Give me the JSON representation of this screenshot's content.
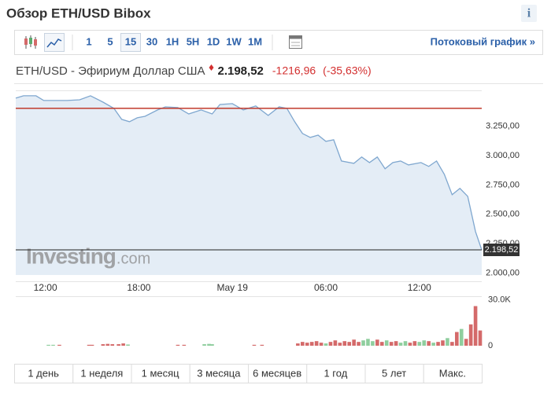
{
  "header": {
    "title": "Обзор ETH/USD Bibox",
    "info_icon": "i"
  },
  "toolbar": {
    "intervals": [
      "1",
      "5",
      "15",
      "30",
      "1H",
      "5H",
      "1D",
      "1W",
      "1M"
    ],
    "selected_interval": 2,
    "stream_link": "Потоковый график »"
  },
  "quote": {
    "name": "ETH/USD - Эфириум Доллар США",
    "price": "2.198,52",
    "change": "-1216,96",
    "change_percent": "(-35,63%)"
  },
  "chart_data": [
    {
      "type": "area",
      "color": "#7fa7cf",
      "fill": "#e4edf6",
      "x": [
        10.1,
        10.6,
        11.4,
        11.9,
        12.6,
        13.4,
        14.2,
        14.9,
        15.7,
        16.4,
        16.9,
        17.4,
        17.9,
        18.4,
        19.2,
        19.7,
        20.5,
        21.2,
        22.0,
        22.7,
        23.2,
        24.0,
        24.7,
        25.5,
        26.3,
        27.0,
        27.5,
        28.0,
        28.5,
        29.0,
        29.5,
        30.0,
        30.5,
        31.0,
        31.8,
        32.3,
        32.8,
        33.3,
        33.8,
        34.3,
        34.8,
        35.3,
        36.1,
        36.6,
        37.1,
        37.6,
        38.1,
        38.6,
        39.1,
        39.6,
        40.0
      ],
      "values": [
        3487,
        3507,
        3507,
        3467,
        3467,
        3467,
        3473,
        3507,
        3453,
        3400,
        3307,
        3287,
        3320,
        3333,
        3387,
        3413,
        3407,
        3353,
        3387,
        3353,
        3433,
        3440,
        3387,
        3420,
        3340,
        3413,
        3400,
        3287,
        3187,
        3153,
        3173,
        3120,
        3133,
        2953,
        2933,
        2987,
        2940,
        2987,
        2887,
        2940,
        2953,
        2920,
        2940,
        2907,
        2953,
        2840,
        2667,
        2720,
        2653,
        2353,
        2198.52
      ],
      "xlim": [
        10.1,
        40.0
      ],
      "ylim": [
        1985,
        3553
      ],
      "xticks": [
        {
          "value": 12,
          "label": "12:00"
        },
        {
          "value": 18,
          "label": "18:00"
        },
        {
          "value": 24,
          "label": "May 19"
        },
        {
          "value": 30,
          "label": "06:00"
        },
        {
          "value": 36,
          "label": "12:00"
        }
      ],
      "yticks": [
        {
          "value": 2000,
          "label": "2.000,00"
        },
        {
          "value": 2250,
          "label": "2.250,00"
        },
        {
          "value": 2500,
          "label": "2.500,00"
        },
        {
          "value": 2750,
          "label": "2.750,00"
        },
        {
          "value": 3000,
          "label": "3.000,00"
        },
        {
          "value": 3250,
          "label": "3.250,00"
        }
      ],
      "reference_line": {
        "value": 3400,
        "color": "#c0392b"
      },
      "last_price": {
        "value": 2198.52,
        "label": "2.198,52"
      },
      "watermark": [
        "Investing",
        ".com"
      ],
      "grid": false
    },
    {
      "type": "bar",
      "x": [
        12.2,
        12.5,
        12.9,
        14.8,
        15.0,
        15.7,
        16.0,
        16.3,
        16.7,
        17.0,
        17.3,
        20.5,
        20.9,
        22.2,
        22.5,
        22.7,
        25.4,
        25.9,
        28.2,
        28.5,
        28.8,
        29.1,
        29.4,
        29.7,
        30.0,
        30.3,
        30.6,
        30.9,
        31.2,
        31.5,
        31.8,
        32.1,
        32.4,
        32.7,
        33.0,
        33.3,
        33.6,
        33.9,
        34.2,
        34.5,
        34.8,
        35.1,
        35.4,
        35.7,
        36.0,
        36.3,
        36.6,
        36.9,
        37.2,
        37.5,
        37.8,
        38.1,
        38.4,
        38.7,
        39.0,
        39.3,
        39.6,
        39.9
      ],
      "values": [
        600,
        600,
        600,
        600,
        600,
        1000,
        1200,
        1000,
        1000,
        1500,
        800,
        600,
        600,
        1000,
        1200,
        1000,
        600,
        600,
        1500,
        2500,
        2000,
        2500,
        3000,
        2000,
        1500,
        2500,
        3500,
        2000,
        3000,
        2500,
        4000,
        2500,
        3500,
        4500,
        3000,
        4000,
        2500,
        3500,
        2500,
        3000,
        2000,
        3000,
        2000,
        3000,
        2500,
        3500,
        3000,
        2000,
        2500,
        3500,
        5000,
        2500,
        9000,
        11000,
        4500,
        14000,
        26000,
        10000
      ],
      "colors": [
        "#8fce9e",
        "#8fce9e",
        "#d46a6a",
        "#d46a6a",
        "#d46a6a",
        "#d46a6a",
        "#d46a6a",
        "#d46a6a",
        "#d46a6a",
        "#d46a6a",
        "#8fce9e",
        "#d46a6a",
        "#d46a6a",
        "#8fce9e",
        "#8fce9e",
        "#8fce9e",
        "#d46a6a",
        "#d46a6a",
        "#d46a6a",
        "#d46a6a",
        "#d46a6a",
        "#d46a6a",
        "#d46a6a",
        "#d46a6a",
        "#8fce9e",
        "#d46a6a",
        "#d46a6a",
        "#d46a6a",
        "#d46a6a",
        "#d46a6a",
        "#d46a6a",
        "#d46a6a",
        "#8fce9e",
        "#8fce9e",
        "#8fce9e",
        "#d46a6a",
        "#d46a6a",
        "#8fce9e",
        "#d46a6a",
        "#d46a6a",
        "#8fce9e",
        "#8fce9e",
        "#d46a6a",
        "#d46a6a",
        "#8fce9e",
        "#8fce9e",
        "#d46a6a",
        "#8fce9e",
        "#d46a6a",
        "#d46a6a",
        "#8fce9e",
        "#d46a6a",
        "#d46a6a",
        "#8fce9e",
        "#d46a6a",
        "#d46a6a",
        "#d46a6a",
        "#d46a6a"
      ],
      "xlim": [
        10.1,
        40.0
      ],
      "ylim": [
        0,
        33000
      ],
      "yticks": [
        {
          "value": 30000,
          "label": "30.0K"
        },
        0
      ]
    }
  ],
  "range_tabs": [
    "1 день",
    "1 неделя",
    "1 месяц",
    "3 месяца",
    "6 месяцев",
    "1 год",
    "5 лет",
    "Макс."
  ]
}
